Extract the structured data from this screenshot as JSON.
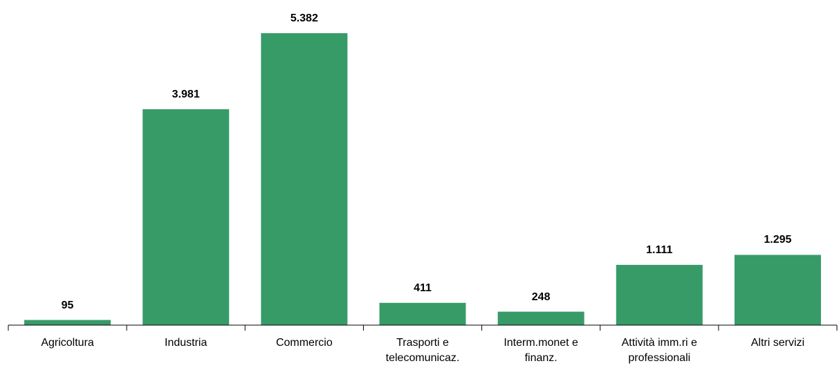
{
  "chart_data": {
    "type": "bar",
    "categories": [
      "Agricoltura",
      "Industria",
      "Commercio",
      "Trasporti e telecomunicaz.",
      "Interm.monet e finanz.",
      "Attività imm.ri e professionali",
      "Altri servizi"
    ],
    "values": [
      95,
      3981,
      5382,
      411,
      248,
      1111,
      1295
    ],
    "value_labels": [
      "95",
      "3.981",
      "5.382",
      "411",
      "248",
      "1.111",
      "1.295"
    ],
    "color": "#379b68"
  }
}
